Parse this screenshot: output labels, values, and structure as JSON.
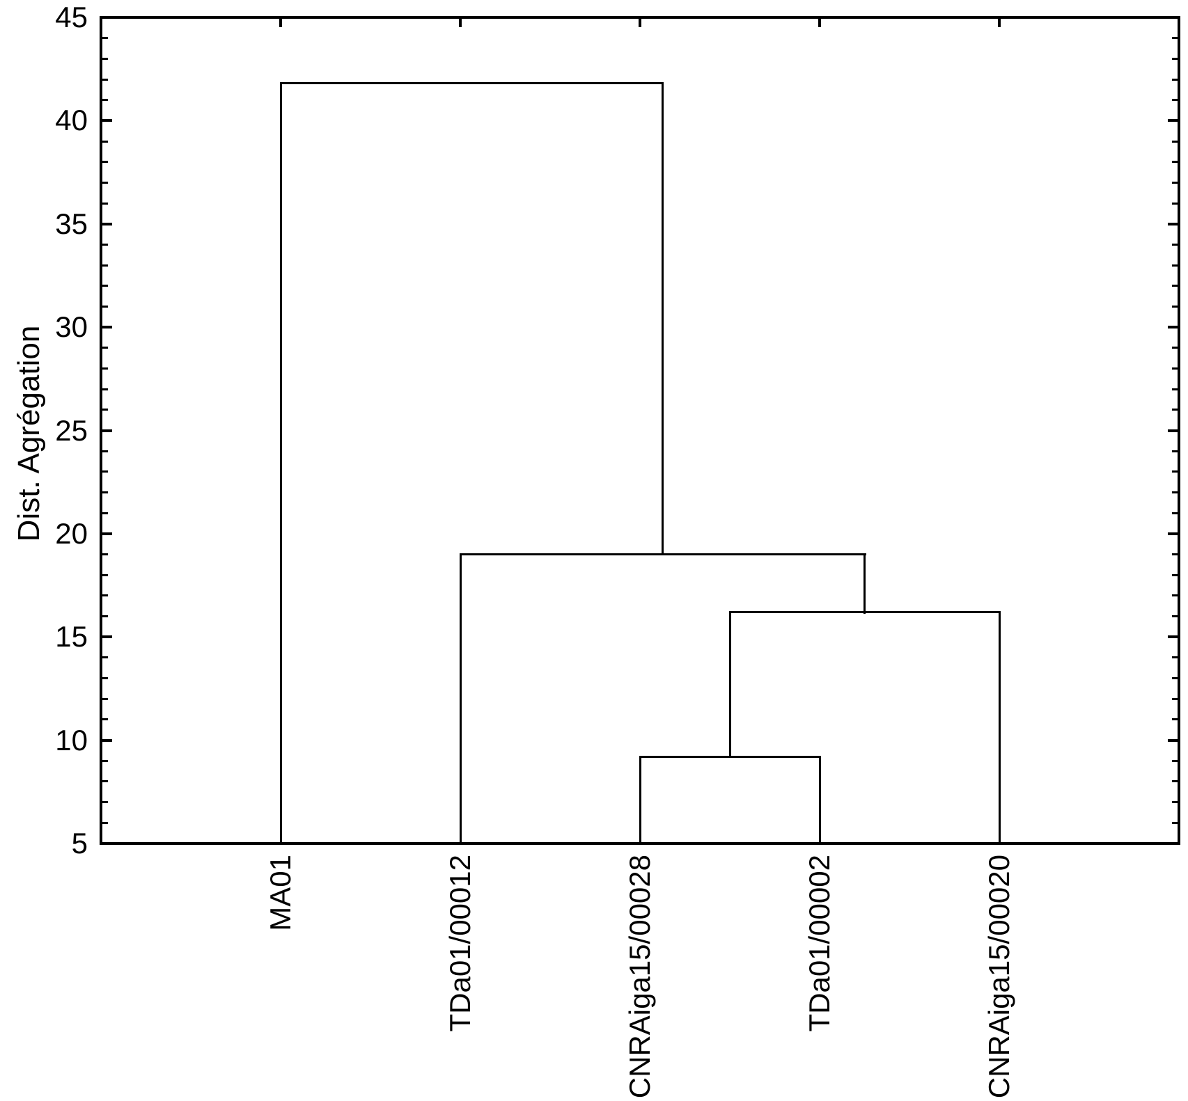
{
  "chart_data": {
    "type": "dendrogram",
    "title": "",
    "ylabel": "Dist. Agrégation",
    "xlabel": "",
    "ylim": [
      5,
      45
    ],
    "y_major_step": 5,
    "y_minor_step": 1,
    "y_tick_labels": [
      "5",
      "10",
      "15",
      "20",
      "25",
      "30",
      "35",
      "40",
      "45"
    ],
    "grid": "off",
    "frame": "full-box-with-inward-ticks",
    "line_color": "#000000",
    "background": "#ffffff",
    "leaves": [
      "MA01",
      "TDa01/00012",
      "CNRAiga15/00028",
      "TDa01/00002",
      "CNRAiga15/00020"
    ],
    "merges": [
      {
        "id": "m1",
        "children": [
          "CNRAiga15/00028",
          "TDa01/00002"
        ],
        "height": 9.2
      },
      {
        "id": "m2",
        "children": [
          "m1",
          "CNRAiga15/00020"
        ],
        "height": 16.2
      },
      {
        "id": "m3",
        "children": [
          "TDa01/00012",
          "m2"
        ],
        "height": 19.0
      },
      {
        "id": "m4",
        "children": [
          "MA01",
          "m3"
        ],
        "height": 41.8
      }
    ]
  }
}
